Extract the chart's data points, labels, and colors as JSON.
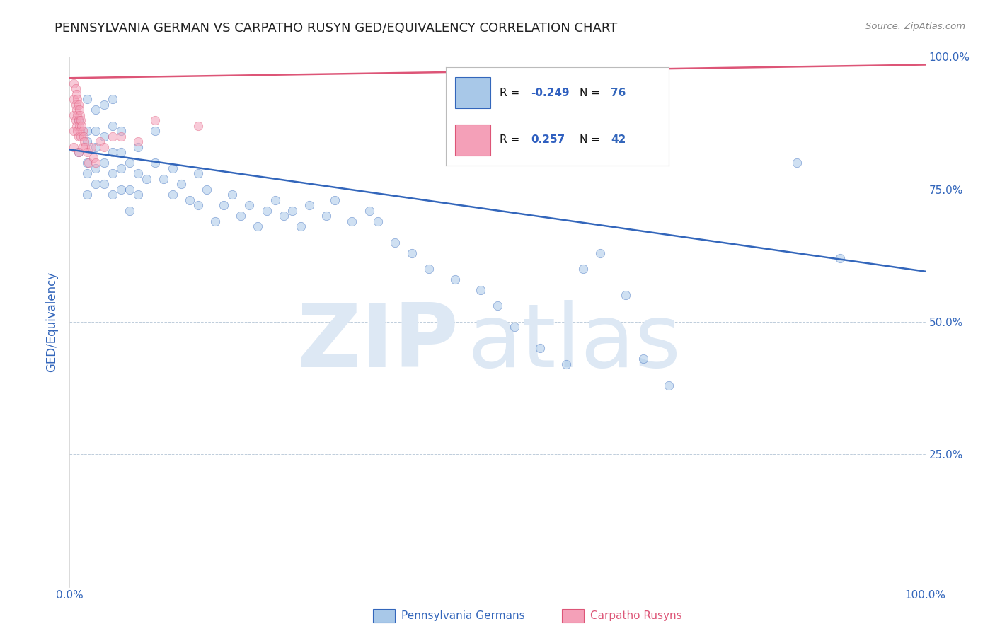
{
  "title": "PENNSYLVANIA GERMAN VS CARPATHO RUSYN GED/EQUIVALENCY CORRELATION CHART",
  "source": "Source: ZipAtlas.com",
  "ylabel": "GED/Equivalency",
  "blue_label": "Pennsylvania Germans",
  "pink_label": "Carpatho Rusyns",
  "blue_R": -0.249,
  "blue_N": 76,
  "pink_R": 0.257,
  "pink_N": 42,
  "blue_color": "#a8c8e8",
  "pink_color": "#f4a0b8",
  "blue_line_color": "#3366bb",
  "pink_line_color": "#dd5577",
  "legend_R_color": "#3060c0",
  "legend_N_color": "#3366bb",
  "axis_label_color": "#3366bb",
  "tick_label_color": "#3366bb",
  "watermark_color": "#dde8f4",
  "background_color": "#ffffff",
  "blue_line_y0": 0.825,
  "blue_line_y1": 0.595,
  "pink_line_y0": 0.96,
  "pink_line_y1": 0.985,
  "blue_x": [
    0.01,
    0.01,
    0.02,
    0.02,
    0.02,
    0.02,
    0.02,
    0.02,
    0.03,
    0.03,
    0.03,
    0.03,
    0.03,
    0.04,
    0.04,
    0.04,
    0.04,
    0.05,
    0.05,
    0.05,
    0.05,
    0.05,
    0.06,
    0.06,
    0.06,
    0.06,
    0.07,
    0.07,
    0.07,
    0.08,
    0.08,
    0.08,
    0.09,
    0.1,
    0.1,
    0.11,
    0.12,
    0.12,
    0.13,
    0.14,
    0.15,
    0.15,
    0.16,
    0.17,
    0.18,
    0.19,
    0.2,
    0.21,
    0.22,
    0.23,
    0.24,
    0.25,
    0.26,
    0.27,
    0.28,
    0.3,
    0.31,
    0.33,
    0.35,
    0.36,
    0.38,
    0.4,
    0.42,
    0.45,
    0.48,
    0.5,
    0.52,
    0.55,
    0.58,
    0.6,
    0.62,
    0.65,
    0.67,
    0.7,
    0.85,
    0.9
  ],
  "blue_y": [
    0.88,
    0.82,
    0.84,
    0.8,
    0.92,
    0.86,
    0.78,
    0.74,
    0.83,
    0.79,
    0.86,
    0.9,
    0.76,
    0.8,
    0.85,
    0.91,
    0.76,
    0.82,
    0.87,
    0.78,
    0.74,
    0.92,
    0.82,
    0.86,
    0.79,
    0.75,
    0.8,
    0.75,
    0.71,
    0.78,
    0.83,
    0.74,
    0.77,
    0.8,
    0.86,
    0.77,
    0.74,
    0.79,
    0.76,
    0.73,
    0.78,
    0.72,
    0.75,
    0.69,
    0.72,
    0.74,
    0.7,
    0.72,
    0.68,
    0.71,
    0.73,
    0.7,
    0.71,
    0.68,
    0.72,
    0.7,
    0.73,
    0.69,
    0.71,
    0.69,
    0.65,
    0.63,
    0.6,
    0.58,
    0.56,
    0.53,
    0.49,
    0.45,
    0.42,
    0.6,
    0.63,
    0.55,
    0.43,
    0.38,
    0.8,
    0.62
  ],
  "pink_x": [
    0.005,
    0.005,
    0.005,
    0.005,
    0.005,
    0.007,
    0.007,
    0.007,
    0.008,
    0.008,
    0.008,
    0.009,
    0.009,
    0.009,
    0.01,
    0.01,
    0.01,
    0.01,
    0.011,
    0.011,
    0.012,
    0.012,
    0.013,
    0.013,
    0.014,
    0.015,
    0.015,
    0.016,
    0.017,
    0.018,
    0.02,
    0.022,
    0.025,
    0.028,
    0.03,
    0.035,
    0.04,
    0.05,
    0.06,
    0.08,
    0.1,
    0.15
  ],
  "pink_y": [
    0.95,
    0.92,
    0.89,
    0.86,
    0.83,
    0.94,
    0.91,
    0.88,
    0.93,
    0.9,
    0.87,
    0.92,
    0.89,
    0.86,
    0.91,
    0.88,
    0.85,
    0.82,
    0.9,
    0.87,
    0.89,
    0.86,
    0.88,
    0.85,
    0.87,
    0.86,
    0.83,
    0.85,
    0.84,
    0.83,
    0.82,
    0.8,
    0.83,
    0.81,
    0.8,
    0.84,
    0.83,
    0.85,
    0.85,
    0.84,
    0.88,
    0.87
  ],
  "xlim": [
    0.0,
    1.0
  ],
  "ylim": [
    0.0,
    1.0
  ],
  "yticks": [
    0.0,
    0.25,
    0.5,
    0.75,
    1.0
  ],
  "ytick_labels": [
    "",
    "25.0%",
    "50.0%",
    "75.0%",
    "100.0%"
  ],
  "xtick_labels_outer": [
    "0.0%",
    "100.0%"
  ],
  "xticks_outer": [
    0.0,
    1.0
  ],
  "grid_color": "#b8c8d8",
  "title_color": "#222222",
  "marker_size": 80,
  "marker_alpha": 0.55,
  "line_width": 1.8
}
